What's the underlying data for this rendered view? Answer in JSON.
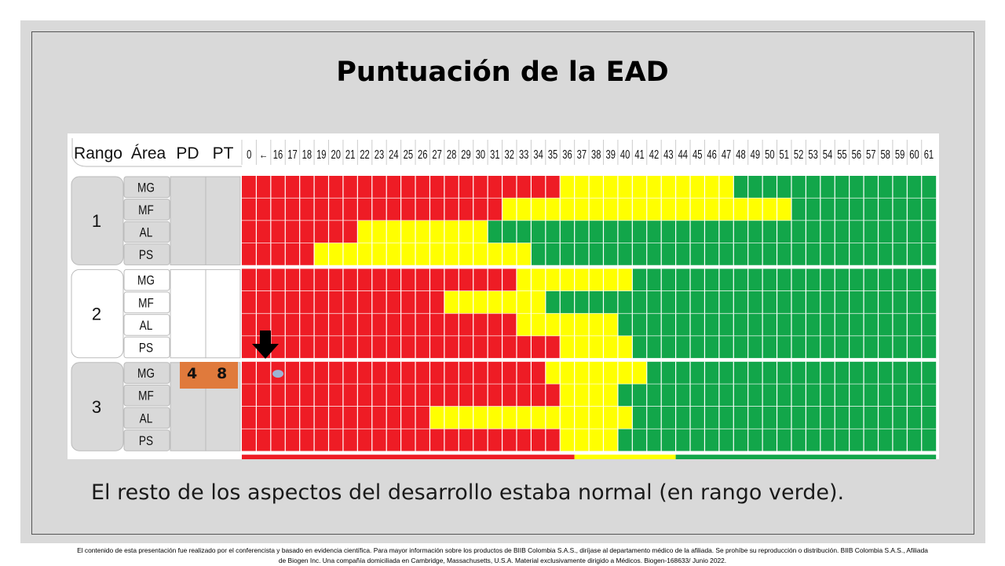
{
  "slide": {
    "title": "Puntuación de la EAD",
    "caption": "El resto de los aspectos del desarrollo estaba normal (en rango verde).",
    "disclaimer_line1": "El contenido de esta presentación fue realizado por el conferencista y basado en evidencia científica. Para mayor información sobre los productos de BIIB Colombia S.A.S., diríjase al departamento médico de la afiliada. Se prohíbe su reproducción o distribución. BIIB Colombia S.A.S., Afiliada",
    "disclaimer_line2": "de Biogen Inc. Una compañía domiciliada en Cambridge, Massachusetts, U.S.A. Material exclusivamente dirigido a Médicos. Biogen-168633/ Junio 2022."
  },
  "chart_data": {
    "type": "table",
    "headers": {
      "rango": "Rango",
      "area": "Área",
      "pd": "PD",
      "pt": "PT"
    },
    "columns": [
      "0",
      "←",
      "16",
      "17",
      "18",
      "19",
      "20",
      "21",
      "22",
      "23",
      "24",
      "25",
      "26",
      "27",
      "28",
      "29",
      "30",
      "31",
      "32",
      "33",
      "34",
      "35",
      "36",
      "37",
      "38",
      "39",
      "40",
      "41",
      "42",
      "43",
      "44",
      "45",
      "46",
      "47",
      "48",
      "49",
      "50",
      "51",
      "52",
      "53",
      "54",
      "55",
      "56",
      "57",
      "58",
      "59",
      "60",
      "61"
    ],
    "colors": {
      "red": "#ee1c25",
      "yellow": "#ffff00",
      "green": "#12a64a"
    },
    "groups": [
      {
        "rango": "1",
        "rows": [
          {
            "area": "MG",
            "red_until": "35",
            "yellow_until": "47"
          },
          {
            "area": "MF",
            "red_until": "31",
            "yellow_until": "51"
          },
          {
            "area": "AL",
            "red_until": "21",
            "yellow_until": "30"
          },
          {
            "area": "PS",
            "red_until": "18",
            "yellow_until": "33"
          }
        ]
      },
      {
        "rango": "2",
        "rows": [
          {
            "area": "MG",
            "red_until": "32",
            "yellow_until": "40"
          },
          {
            "area": "MF",
            "red_until": "27",
            "yellow_until": "34"
          },
          {
            "area": "AL",
            "red_until": "32",
            "yellow_until": "39"
          },
          {
            "area": "PS",
            "red_until": "35",
            "yellow_until": "40"
          }
        ]
      },
      {
        "rango": "3",
        "rows": [
          {
            "area": "MG",
            "red_until": "34",
            "yellow_until": "41",
            "marker": "16",
            "pd": "4",
            "pt": "8"
          },
          {
            "area": "MF",
            "red_until": "35",
            "yellow_until": "39"
          },
          {
            "area": "AL",
            "red_until": "26",
            "yellow_until": "40"
          },
          {
            "area": "PS",
            "red_until": "35",
            "yellow_until": "39"
          }
        ]
      }
    ],
    "highlight": {
      "rango": "3",
      "area": "MG",
      "pd": "4",
      "pt": "8",
      "marker_column": "16",
      "arrow": "down"
    }
  }
}
